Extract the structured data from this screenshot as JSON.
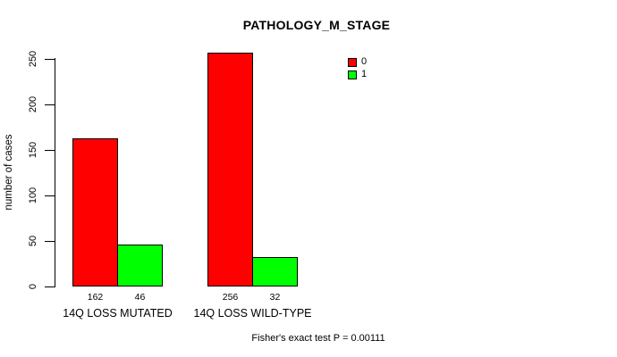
{
  "chart_data": {
    "type": "bar",
    "title": "PATHOLOGY_M_STAGE",
    "ylabel": "number of cases",
    "xlabel": "",
    "categories": [
      "14Q LOSS MUTATED",
      "14Q LOSS WILD-TYPE"
    ],
    "series": [
      {
        "name": "0",
        "color": "#ff0000",
        "values": [
          162,
          256
        ]
      },
      {
        "name": "1",
        "color": "#00ff00",
        "values": [
          46,
          32
        ]
      }
    ],
    "bar_value_labels": [
      [
        162,
        46
      ],
      [
        256,
        32
      ]
    ],
    "yticks": [
      0,
      50,
      100,
      150,
      200,
      250
    ],
    "ylim": [
      0,
      262
    ],
    "grid": false,
    "legend_position": "top-right",
    "annotation": "Fisher's exact test P = 0.00111"
  },
  "colors": {
    "background": "#ffffff",
    "text": "#000000",
    "axis": "#000000",
    "bar_border": "#000000",
    "series_0": "#ff0000",
    "series_1": "#00ff00"
  }
}
